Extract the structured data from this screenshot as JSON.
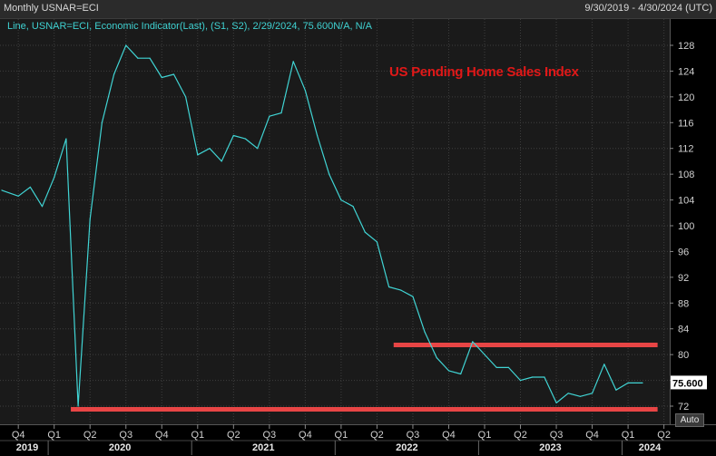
{
  "header": {
    "title": "Monthly USNAR=ECI",
    "date_range": "9/30/2019 - 4/30/2024 (UTC)"
  },
  "legend": {
    "text": "Line, USNAR=ECI, Economic Indicator(Last), (S1, S2), 2/29/2024, 75.600N/A, N/A"
  },
  "annotation": {
    "text": "US Pending Home Sales Index"
  },
  "controls": {
    "auto_label": "Auto"
  },
  "colors": {
    "line": "#40d4d4",
    "annotation": "#e01818",
    "support_lines": "#e84545",
    "last_value_badge": "#ffffff",
    "plot_bg": "#1a1a1a"
  },
  "chart_data": {
    "type": "line",
    "title": "US Pending Home Sales Index",
    "xlabel": "",
    "ylabel": "",
    "ylim": [
      70,
      130
    ],
    "y_ticks": [
      72,
      76,
      80,
      84,
      88,
      92,
      96,
      100,
      104,
      108,
      112,
      116,
      120,
      124,
      128
    ],
    "grid": true,
    "x_quarter_labels": [
      "Q4",
      "Q1",
      "Q2",
      "Q3",
      "Q4",
      "Q1",
      "Q2",
      "Q3",
      "Q4",
      "Q1",
      "Q2",
      "Q3",
      "Q4",
      "Q1",
      "Q2",
      "Q3",
      "Q4",
      "Q1",
      "Q2"
    ],
    "x_year_labels": [
      "2019",
      "2020",
      "2021",
      "2022",
      "2023",
      "2024"
    ],
    "last_value_label": "75.600",
    "series": [
      {
        "name": "USNAR=ECI",
        "x": [
          "2019-09",
          "2019-10",
          "2019-11",
          "2019-12",
          "2020-01",
          "2020-02",
          "2020-03",
          "2020-04",
          "2020-05",
          "2020-06",
          "2020-07",
          "2020-08",
          "2020-09",
          "2020-10",
          "2020-11",
          "2020-12",
          "2021-01",
          "2021-02",
          "2021-03",
          "2021-04",
          "2021-05",
          "2021-06",
          "2021-07",
          "2021-08",
          "2021-09",
          "2021-10",
          "2021-11",
          "2021-12",
          "2022-01",
          "2022-02",
          "2022-03",
          "2022-04",
          "2022-05",
          "2022-06",
          "2022-07",
          "2022-08",
          "2022-09",
          "2022-10",
          "2022-11",
          "2022-12",
          "2023-01",
          "2023-02",
          "2023-03",
          "2023-04",
          "2023-05",
          "2023-06",
          "2023-07",
          "2023-08",
          "2023-09",
          "2023-10",
          "2023-11",
          "2023-12",
          "2024-01",
          "2024-02"
        ],
        "values": [
          105.5,
          104.6,
          106.0,
          103.0,
          107.5,
          113.5,
          72.0,
          101.0,
          116.0,
          123.5,
          128.0,
          126.0,
          126.0,
          123.0,
          123.5,
          120.0,
          111.0,
          112.0,
          110.0,
          114.0,
          113.5,
          112.0,
          117.0,
          117.5,
          125.5,
          121.0,
          114.0,
          108.0,
          104.0,
          103.0,
          99.0,
          97.5,
          90.5,
          90.0,
          89.0,
          83.5,
          79.5,
          77.5,
          77.0,
          82.0,
          80.0,
          78.0,
          78.0,
          76.0,
          76.5,
          76.5,
          72.5,
          74.0,
          73.5,
          74.0,
          78.5,
          74.5,
          75.6,
          75.6
        ]
      }
    ],
    "reference_lines": [
      {
        "y": 71.5,
        "x_from": "2020-03",
        "x_to": "2024-04"
      },
      {
        "y": 81.5,
        "x_from": "2022-06",
        "x_to": "2024-04"
      }
    ]
  }
}
